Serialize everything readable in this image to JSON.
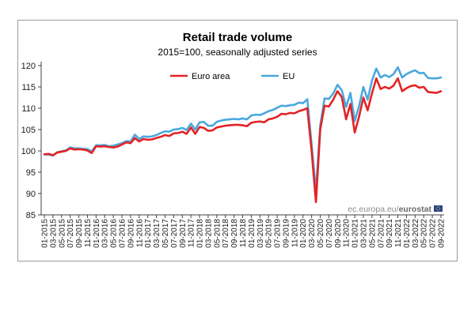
{
  "chart_data": {
    "type": "line",
    "title": "Retail trade volume",
    "subtitle": "2015=100, seasonally adjusted series",
    "x": [
      "01-2015",
      "02-2015",
      "03-2015",
      "04-2015",
      "05-2015",
      "06-2015",
      "07-2015",
      "08-2015",
      "09-2015",
      "10-2015",
      "11-2015",
      "12-2015",
      "01-2016",
      "02-2016",
      "03-2016",
      "04-2016",
      "05-2016",
      "06-2016",
      "07-2016",
      "08-2016",
      "09-2016",
      "10-2016",
      "11-2016",
      "12-2016",
      "01-2017",
      "02-2017",
      "03-2017",
      "04-2017",
      "05-2017",
      "06-2017",
      "07-2017",
      "08-2017",
      "09-2017",
      "10-2017",
      "11-2017",
      "12-2017",
      "01-2018",
      "02-2018",
      "03-2018",
      "04-2018",
      "05-2018",
      "06-2018",
      "07-2018",
      "08-2018",
      "09-2018",
      "10-2018",
      "11-2018",
      "12-2018",
      "01-2019",
      "02-2019",
      "03-2019",
      "04-2019",
      "05-2019",
      "06-2019",
      "07-2019",
      "08-2019",
      "09-2019",
      "10-2019",
      "11-2019",
      "12-2019",
      "01-2020",
      "02-2020",
      "03-2020",
      "04-2020",
      "05-2020",
      "06-2020",
      "07-2020",
      "08-2020",
      "09-2020",
      "10-2020",
      "11-2020",
      "12-2020",
      "01-2021",
      "02-2021",
      "03-2021",
      "04-2021",
      "05-2021",
      "06-2021",
      "07-2021",
      "08-2021",
      "09-2021",
      "10-2021",
      "11-2021",
      "12-2021",
      "01-2022",
      "02-2022",
      "03-2022",
      "04-2022",
      "05-2022",
      "06-2022",
      "07-2022",
      "08-2022",
      "09-2022"
    ],
    "ylim": [
      85,
      120
    ],
    "y_ticks": [
      85,
      90,
      95,
      100,
      105,
      110,
      115,
      120
    ],
    "grid": false,
    "legend": "top-left",
    "series": [
      {
        "name": "Euro area",
        "color": "#e32326",
        "values": [
          99.2,
          99.3,
          99.0,
          99.6,
          99.8,
          100.0,
          100.6,
          100.3,
          100.4,
          100.3,
          100.1,
          99.5,
          101.1,
          101.0,
          101.1,
          100.9,
          100.8,
          101.0,
          101.5,
          102.0,
          101.8,
          103.0,
          102.2,
          102.8,
          102.6,
          102.7,
          103.0,
          103.3,
          103.7,
          103.5,
          104.1,
          104.2,
          104.5,
          104.0,
          105.5,
          104.0,
          105.6,
          105.4,
          104.7,
          104.8,
          105.5,
          105.7,
          105.9,
          106.0,
          106.1,
          106.1,
          106.0,
          105.8,
          106.6,
          106.8,
          106.9,
          106.7,
          107.4,
          107.6,
          108.0,
          108.7,
          108.6,
          108.9,
          108.8,
          109.3,
          109.6,
          110.0,
          100.0,
          88.0,
          105.0,
          110.6,
          110.4,
          112.0,
          114.0,
          112.6,
          107.4,
          111.0,
          104.3,
          108.0,
          112.5,
          109.5,
          113.5,
          117.0,
          114.5,
          115.0,
          114.6,
          115.3,
          117.0,
          114.0,
          114.7,
          115.2,
          115.4,
          114.8,
          115.0,
          113.8,
          113.7,
          113.6,
          114.0
        ]
      },
      {
        "name": "EU",
        "color": "#4aa8de",
        "values": [
          99.2,
          99.1,
          98.9,
          99.7,
          99.9,
          100.1,
          100.8,
          100.6,
          100.6,
          100.5,
          100.4,
          99.9,
          101.3,
          101.3,
          101.4,
          101.1,
          101.2,
          101.5,
          101.8,
          102.3,
          102.2,
          103.8,
          102.8,
          103.4,
          103.3,
          103.4,
          103.7,
          104.2,
          104.6,
          104.5,
          105.0,
          105.1,
          105.4,
          104.9,
          106.4,
          105.0,
          106.7,
          106.8,
          105.9,
          105.9,
          106.8,
          107.1,
          107.3,
          107.4,
          107.5,
          107.4,
          107.6,
          107.4,
          108.3,
          108.5,
          108.4,
          108.8,
          109.3,
          109.6,
          110.1,
          110.6,
          110.5,
          110.7,
          110.8,
          111.3,
          111.2,
          112.1,
          101.5,
          90.5,
          106.0,
          112.3,
          112.2,
          113.4,
          115.5,
          114.2,
          110.3,
          113.6,
          107.0,
          110.5,
          115.0,
          112.0,
          116.5,
          119.3,
          117.2,
          117.8,
          117.3,
          118.0,
          119.6,
          117.2,
          118.0,
          118.5,
          118.9,
          118.2,
          118.3,
          117.1,
          117.0,
          117.0,
          117.2
        ]
      }
    ]
  },
  "footer": {
    "source_prefix": "ec.europa.eu/",
    "source_brand": "eurostat",
    "flag_icon": "eu-flag-icon",
    "flag_color": "#2a3f8f",
    "flag_star_color": "#f2d21b"
  }
}
